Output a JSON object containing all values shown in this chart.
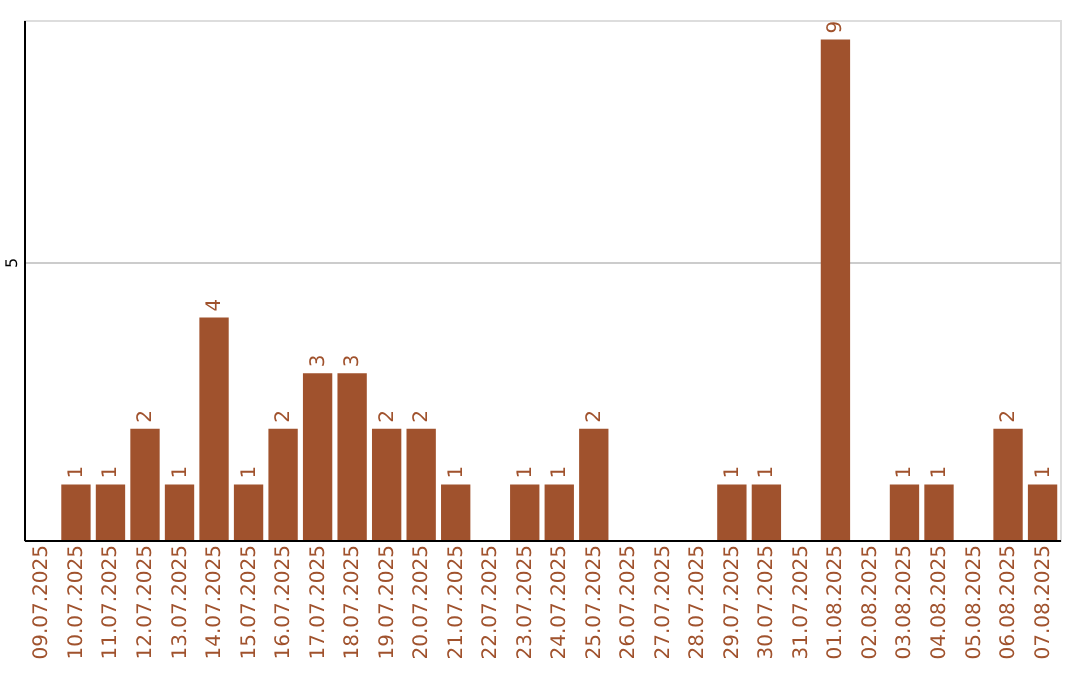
{
  "chart_data": {
    "type": "bar",
    "categories": [
      "09.07.2025",
      "10.07.2025",
      "11.07.2025",
      "12.07.2025",
      "13.07.2025",
      "14.07.2025",
      "15.07.2025",
      "16.07.2025",
      "17.07.2025",
      "18.07.2025",
      "19.07.2025",
      "20.07.2025",
      "21.07.2025",
      "22.07.2025",
      "23.07.2025",
      "24.07.2025",
      "25.07.2025",
      "26.07.2025",
      "27.07.2025",
      "28.07.2025",
      "29.07.2025",
      "30.07.2025",
      "31.07.2025",
      "01.08.2025",
      "02.08.2025",
      "03.08.2025",
      "04.08.2025",
      "05.08.2025",
      "06.08.2025",
      "07.08.2025"
    ],
    "values": [
      0,
      1,
      1,
      2,
      1,
      4,
      1,
      2,
      3,
      3,
      2,
      2,
      1,
      0,
      1,
      1,
      2,
      0,
      0,
      0,
      1,
      1,
      0,
      9,
      0,
      1,
      1,
      0,
      2,
      1
    ],
    "value_labels": [
      null,
      "1",
      "1",
      "2",
      "1",
      "4",
      "1",
      "2",
      "3",
      "3",
      "2",
      "2",
      "1",
      null,
      "1",
      "1",
      "2",
      null,
      null,
      null,
      "1",
      "1",
      null,
      "9",
      null,
      "1",
      "1",
      null,
      "2",
      "1"
    ],
    "color": "#a0522d",
    "ylim": [
      0,
      9.35
    ],
    "yticks": [
      5
    ],
    "grid": "y"
  }
}
